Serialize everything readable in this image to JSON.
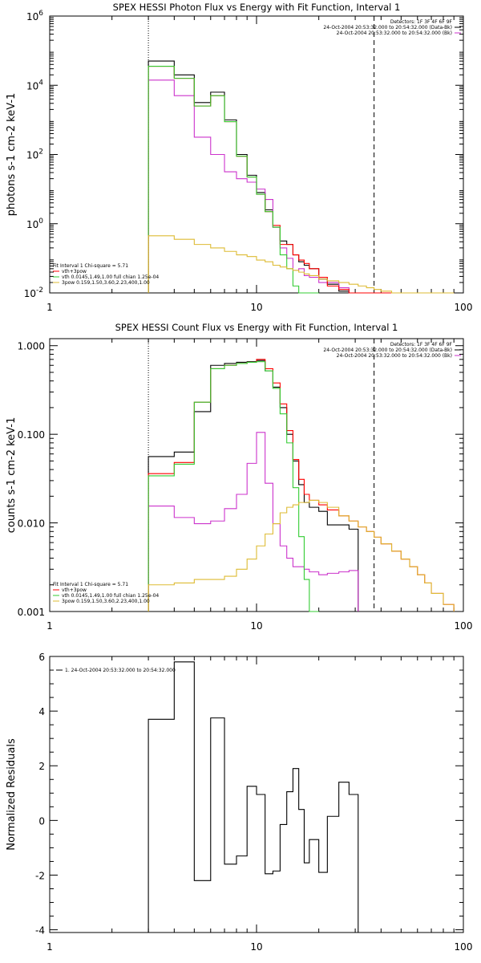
{
  "chart_data": [
    {
      "type": "line",
      "title": "SPEX HESSI Photon Flux vs Energy with Fit Function, Interval 1",
      "ylabel": "photons s-1 cm-2 keV-1",
      "xscale": "log",
      "yscale": "log",
      "xlim": [
        1,
        100
      ],
      "ylim_log10": [
        -2,
        6
      ],
      "xticks": [
        {
          "v": 1,
          "label": "1"
        },
        {
          "v": 10,
          "label": "10"
        },
        {
          "v": 100,
          "label": "100"
        }
      ],
      "yticks": [
        {
          "v": -2,
          "base": "10",
          "exp": "-2"
        },
        {
          "v": 0,
          "base": "10",
          "exp": "0"
        },
        {
          "v": 2,
          "base": "10",
          "exp": "2"
        },
        {
          "v": 4,
          "base": "10",
          "exp": "4"
        },
        {
          "v": 6,
          "base": "10",
          "exp": "6"
        }
      ],
      "vlines": [
        {
          "x": 3,
          "style": "dotted"
        },
        {
          "x": 37,
          "style": "dashed"
        }
      ],
      "legend_top": [
        "Detectors: 1F 3F 4F 6F 9F",
        "24-Oct-2004 20:53:32.000 to 20:54:32.000 (Data-Bk)",
        "24-Oct-2004 20:53:32.000 to 20:54:32.000 (Bk)"
      ],
      "legend_bottom": [
        "Fit Interval 1   Chi-square = 5.71",
        "vth+3pow",
        "vth 0.0145,1.49,1.00  full chian 1.25e-04",
        "3pow 0.159,1.50,3.60,2.23,400,1.00"
      ],
      "edges": [
        3,
        4,
        5,
        6,
        7,
        8,
        9,
        10,
        11,
        12,
        13,
        14,
        15,
        16,
        17,
        18,
        20,
        22,
        25,
        28,
        31,
        34,
        37,
        40,
        45,
        50,
        55,
        60,
        65,
        70,
        80,
        90
      ],
      "series": [
        {
          "name": "Data-Bk",
          "color": "#000000",
          "values": [
            4.7,
            4.3,
            3.5,
            3.8,
            3.0,
            2.0,
            1.4,
            0.9,
            0.4,
            -0.1,
            -0.5,
            -0.6,
            -0.9,
            -1.1,
            -1.2,
            -1.3,
            -1.6,
            -1.75,
            -1.95
          ]
        },
        {
          "name": "Bk",
          "color": "#cc33cc",
          "values": [
            4.15,
            3.7,
            2.5,
            2.0,
            1.5,
            1.3,
            1.2,
            1.0,
            0.7,
            -0.1,
            -0.7,
            -1.0,
            -1.35,
            -1.3,
            -1.5,
            -1.55,
            -1.7,
            -1.7,
            -1.85
          ]
        },
        {
          "name": "vth+3pow",
          "color": "#ff0000",
          "values": [
            4.55,
            4.2,
            3.4,
            3.7,
            2.95,
            1.95,
            1.35,
            0.85,
            0.35,
            -0.05,
            -0.6,
            -0.6,
            -0.9,
            -1.05,
            -1.15,
            -1.3,
            -1.55,
            -1.8,
            -1.9,
            -2.0,
            -2.1,
            -2.2,
            -2.3,
            -2.4,
            -2.5,
            -2.6,
            -2.7,
            -2.8,
            -2.9,
            -3.0,
            -3.1
          ]
        },
        {
          "name": "vth",
          "color": "#33cc33",
          "values": [
            4.55,
            4.2,
            3.4,
            3.7,
            2.95,
            1.95,
            1.35,
            0.85,
            0.35,
            -0.1,
            -0.9,
            -1.3,
            -1.8,
            -2.2,
            -2.8,
            -3.5
          ]
        },
        {
          "name": "3pow",
          "color": "#ddbb33",
          "values": [
            -0.35,
            -0.45,
            -0.6,
            -0.7,
            -0.8,
            -0.9,
            -0.95,
            -1.05,
            -1.1,
            -1.2,
            -1.25,
            -1.3,
            -1.35,
            -1.4,
            -1.45,
            -1.5,
            -1.6,
            -1.65,
            -1.7,
            -1.75,
            -1.8,
            -1.85,
            -1.9,
            -1.95,
            -2.0,
            -2.05,
            -2.1,
            -2.15,
            -2.2,
            -2.3,
            -2.4
          ]
        }
      ]
    },
    {
      "type": "line",
      "title": "SPEX HESSI Count Flux vs Energy with Fit Function, Interval 1",
      "ylabel": "counts s-1 cm-2 keV-1",
      "xscale": "log",
      "yscale": "log",
      "xlim": [
        1,
        100
      ],
      "ylim": [
        0.001,
        1.2
      ],
      "xticks": [
        {
          "v": 1,
          "label": "1"
        },
        {
          "v": 10,
          "label": "10"
        },
        {
          "v": 100,
          "label": "100"
        }
      ],
      "yticks": [
        {
          "v": 0.001,
          "label": "0.001"
        },
        {
          "v": 0.01,
          "label": "0.010"
        },
        {
          "v": 0.1,
          "label": "0.100"
        },
        {
          "v": 1.0,
          "label": "1.000"
        }
      ],
      "vlines": [
        {
          "x": 3,
          "style": "dotted"
        },
        {
          "x": 37,
          "style": "dashed"
        }
      ],
      "legend_top": [
        "Detectors: 1F 3F 4F 6F 9F",
        "24-Oct-2004 20:53:32.000 to 20:54:32.000 (Data-Bk)",
        "24-Oct-2004 20:53:32.000 to 20:54:32.000 (Bk)"
      ],
      "legend_bottom": [
        "Fit Interval 1   Chi-square = 5.71",
        "vth+3pow",
        "vth 0.0145,1.49,1.00  full chian 1.25e-04",
        "3pow 0.159,1.50,3.60,2.23,400,1.00"
      ],
      "edges": [
        3,
        4,
        5,
        6,
        7,
        8,
        9,
        10,
        11,
        12,
        13,
        14,
        15,
        16,
        17,
        18,
        20,
        22,
        25,
        28,
        31,
        34,
        37,
        40,
        45,
        50,
        55,
        60,
        65,
        70,
        80,
        90
      ],
      "series": [
        {
          "name": "Data-Bk",
          "color": "#000000",
          "values": [
            0.056,
            0.063,
            0.18,
            0.6,
            0.63,
            0.65,
            0.66,
            0.68,
            0.52,
            0.34,
            0.2,
            0.1,
            0.05,
            0.027,
            0.017,
            0.015,
            0.0135,
            0.0095,
            0.0095,
            0.0085
          ]
        },
        {
          "name": "Bk",
          "color": "#cc33cc",
          "values": [
            0.0155,
            0.0115,
            0.0098,
            0.0105,
            0.0145,
            0.021,
            0.047,
            0.105,
            0.028,
            0.0098,
            0.0055,
            0.004,
            0.0032,
            0.0032,
            0.003,
            0.0028,
            0.0026,
            0.0027,
            0.0028,
            0.0029
          ]
        },
        {
          "name": "vth+3pow",
          "color": "#ff0000",
          "values": [
            0.036,
            0.048,
            0.23,
            0.55,
            0.6,
            0.63,
            0.65,
            0.7,
            0.55,
            0.38,
            0.22,
            0.11,
            0.052,
            0.031,
            0.021,
            0.018,
            0.016,
            0.014,
            0.012,
            0.0105,
            0.009,
            0.008,
            0.0069,
            0.0058,
            0.0048,
            0.0039,
            0.0032,
            0.0026,
            0.0021,
            0.0016,
            0.0012
          ]
        },
        {
          "name": "vth",
          "color": "#33cc33",
          "values": [
            0.034,
            0.046,
            0.23,
            0.55,
            0.6,
            0.63,
            0.65,
            0.66,
            0.52,
            0.33,
            0.17,
            0.08,
            0.025,
            0.007,
            0.0023,
            0.0007
          ]
        },
        {
          "name": "3pow",
          "color": "#ddbb33",
          "values": [
            0.002,
            0.0021,
            0.0023,
            0.0023,
            0.0025,
            0.003,
            0.0039,
            0.0055,
            0.0075,
            0.0098,
            0.013,
            0.015,
            0.016,
            0.017,
            0.017,
            0.018,
            0.017,
            0.015,
            0.012,
            0.0105,
            0.009,
            0.008,
            0.0069,
            0.0058,
            0.0048,
            0.0039,
            0.0032,
            0.0026,
            0.0021,
            0.0016,
            0.0012
          ]
        }
      ]
    },
    {
      "type": "line",
      "title": "",
      "ylabel": "Normalized Residuals",
      "xscale": "log",
      "yscale": "linear",
      "xlim": [
        1,
        100
      ],
      "ylim": [
        -4.1,
        6.0
      ],
      "xticks": [
        {
          "v": 1,
          "label": "1"
        },
        {
          "v": 10,
          "label": "10"
        },
        {
          "v": 100,
          "label": "100"
        }
      ],
      "yticks": [
        {
          "v": -4,
          "label": "-4"
        },
        {
          "v": -2,
          "label": "-2"
        },
        {
          "v": 0,
          "label": "0"
        },
        {
          "v": 2,
          "label": "2"
        },
        {
          "v": 4,
          "label": "4"
        },
        {
          "v": 6,
          "label": "6"
        }
      ],
      "legend": [
        "1. 24-Oct-2004 20:53:32.000 to 20:54:32.000"
      ],
      "edges": [
        3,
        4,
        5,
        6,
        7,
        8,
        9,
        10,
        11,
        12,
        13,
        14,
        15,
        16,
        17,
        18,
        20,
        22,
        25,
        28,
        31,
        34,
        37
      ],
      "series": [
        {
          "name": "1. 24-Oct-2004 20:53:32.000 to 20:54:32.000",
          "color": "#000000",
          "values": [
            3.7,
            5.8,
            -2.2,
            3.75,
            -1.6,
            -1.3,
            1.25,
            0.95,
            -1.95,
            -1.85,
            -0.15,
            1.05,
            1.9,
            0.4,
            -1.55,
            -0.7,
            -1.9,
            0.15,
            1.4,
            0.95
          ]
        }
      ]
    }
  ]
}
